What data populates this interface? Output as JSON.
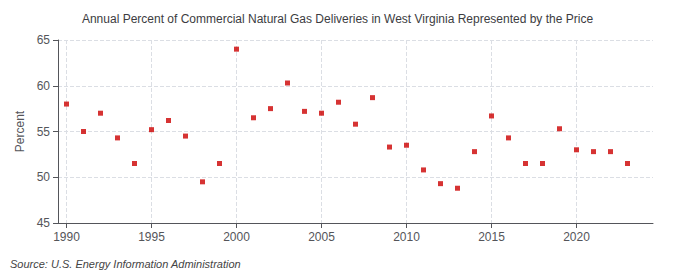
{
  "chart_data": {
    "type": "scatter",
    "title": "Annual Percent of Commercial Natural Gas Deliveries in West Virginia Represented by the Price",
    "y_label": "Percent",
    "annotation": "Source: U.S. Energy Information Administration",
    "x": [
      1990,
      1991,
      1992,
      1993,
      1994,
      1995,
      1996,
      1997,
      1998,
      1999,
      2000,
      2001,
      2002,
      2003,
      2004,
      2005,
      2006,
      2007,
      2008,
      2009,
      2010,
      2011,
      2012,
      2013,
      2014,
      2015,
      2016,
      2017,
      2018,
      2019,
      2020,
      2021,
      2022,
      2023
    ],
    "values": [
      58.0,
      55.0,
      57.0,
      54.3,
      51.5,
      55.2,
      56.2,
      54.5,
      49.5,
      51.5,
      64.0,
      56.5,
      57.5,
      60.3,
      57.2,
      57.0,
      58.2,
      55.8,
      58.7,
      53.3,
      53.5,
      50.8,
      49.3,
      48.8,
      52.8,
      56.7,
      54.3,
      51.5,
      51.5,
      55.3,
      53.0,
      52.8,
      52.8,
      51.5
    ],
    "color": "#cc0000",
    "marker": "square",
    "xlim": [
      1989.5,
      2024.5
    ],
    "xticks": [
      1990,
      1995,
      2000,
      2005,
      2010,
      2015,
      2020
    ],
    "ylim": [
      45,
      65
    ],
    "yticks": [
      45,
      50,
      55,
      60,
      65
    ],
    "grid": true
  }
}
